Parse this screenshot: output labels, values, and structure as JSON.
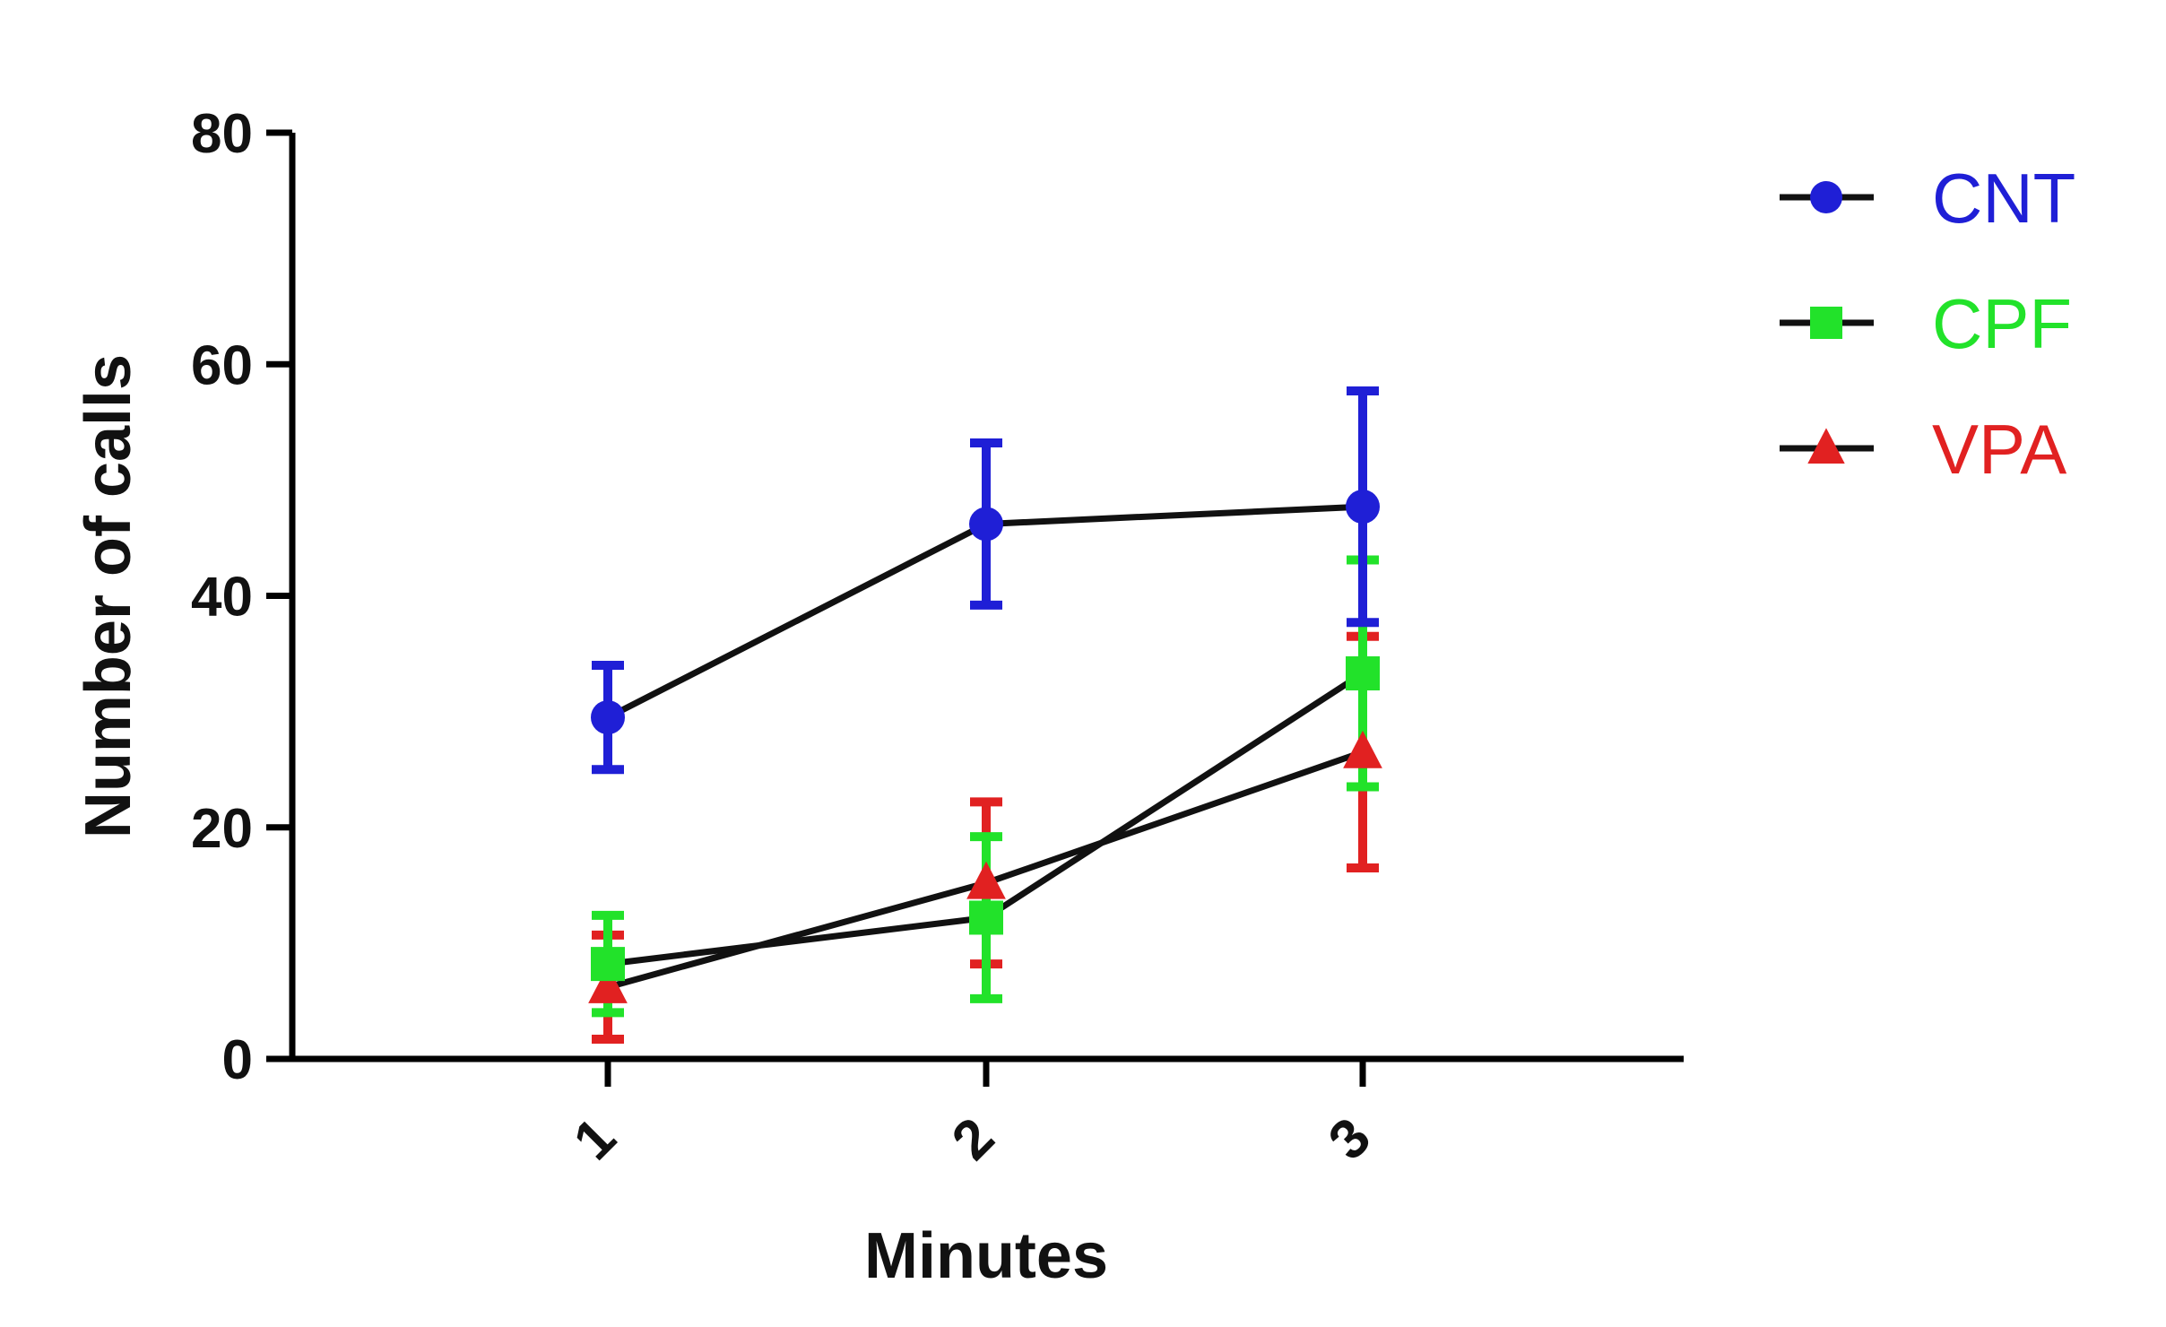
{
  "chart_data": {
    "type": "line",
    "title": "",
    "xlabel": "Minutes",
    "ylabel": "Number of calls",
    "x": [
      1,
      2,
      3
    ],
    "x_tick_labels": [
      "1",
      "2",
      "3"
    ],
    "y_tick_labels": [
      "0",
      "20",
      "40",
      "60",
      "80"
    ],
    "yticks": [
      0,
      20,
      40,
      60,
      80
    ],
    "ylim": [
      0,
      80
    ],
    "grid": false,
    "legend_position": "top-right",
    "error_bars": true,
    "series": [
      {
        "name": "CNT",
        "marker": "circle",
        "color": "#1f1fd6",
        "values": [
          29.5,
          46.2,
          47.7
        ],
        "errors": [
          4.5,
          7.0,
          10.0
        ]
      },
      {
        "name": "CPF",
        "marker": "square",
        "color": "#22e22a",
        "values": [
          8.2,
          12.2,
          33.3
        ],
        "errors": [
          4.2,
          7.0,
          9.8
        ]
      },
      {
        "name": "VPA",
        "marker": "triangle",
        "color": "#e12121",
        "values": [
          6.2,
          15.2,
          26.5
        ],
        "errors": [
          4.5,
          7.0,
          10.0
        ]
      }
    ]
  }
}
